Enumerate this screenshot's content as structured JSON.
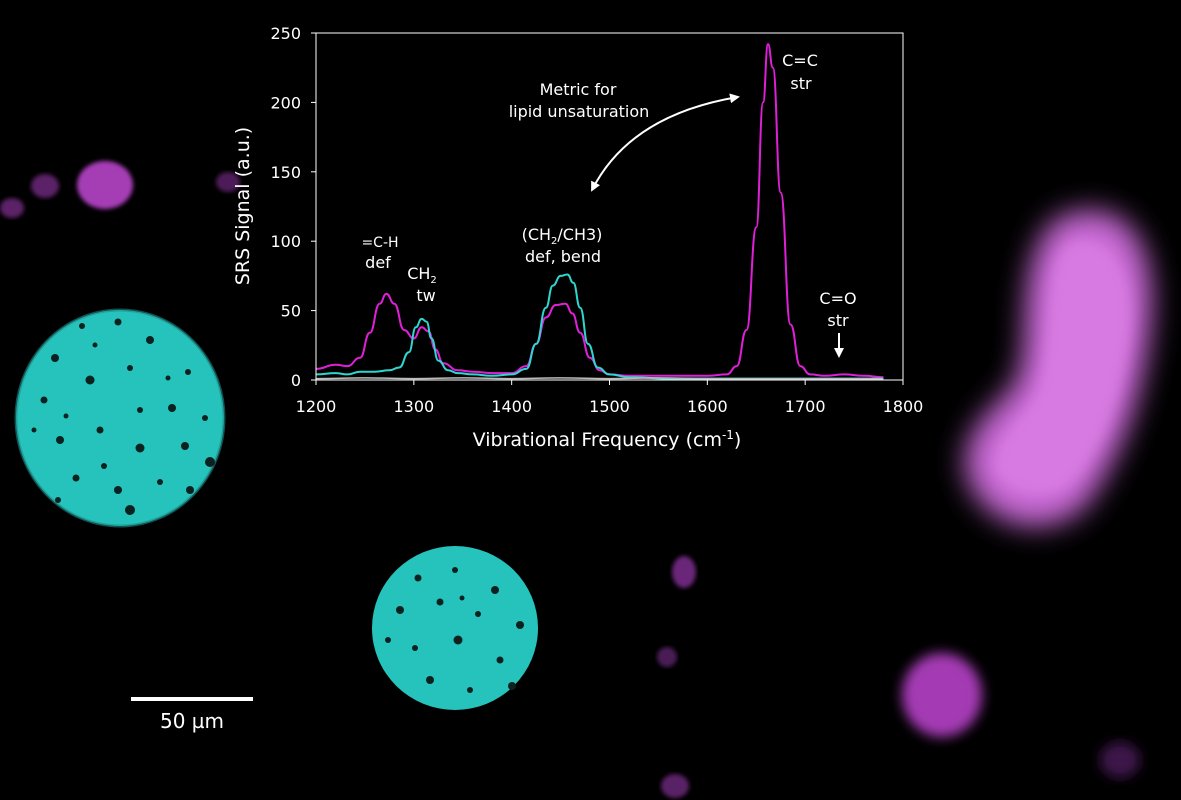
{
  "scale_bar": {
    "label": "50 µm"
  },
  "colors": {
    "background": "#000000",
    "cyan": "#2fd6cf",
    "magenta": "#d21fd0",
    "white": "#ffffff"
  },
  "chart_data": {
    "type": "line",
    "xlabel_main": "Vibrational Frequency (cm",
    "xlabel_sup": "-1",
    "xlabel_end": ")",
    "ylabel": "SRS Signal (a.u.)",
    "xlim": [
      1200,
      1800
    ],
    "ylim": [
      0,
      250
    ],
    "xticks": [
      "1200",
      "1300",
      "1400",
      "1500",
      "1600",
      "1700",
      "1800"
    ],
    "yticks": [
      "0",
      "50",
      "100",
      "150",
      "200",
      "250"
    ],
    "grid": false,
    "annotations": {
      "ch_def_line1": "=C-H",
      "ch_def_line2": "def",
      "ch2tw_main": "CH",
      "ch2tw_sub": "2",
      "ch2tw_line2": "tw",
      "bend_a": "(CH",
      "bend_sub": "2",
      "bend_b": "/CH3)",
      "bend_line2": "def, bend",
      "metric_line1": "Metric for",
      "metric_line2": "lipid unsaturation",
      "cc_line1": "C=C",
      "cc_line2": "str",
      "co_line1": "C=O",
      "co_line2": "str"
    },
    "series": [
      {
        "color": "#e020d8",
        "x": [
          1200,
          1220,
          1232,
          1245,
          1255,
          1265,
          1272,
          1280,
          1290,
          1300,
          1308,
          1315,
          1322,
          1330,
          1345,
          1360,
          1380,
          1400,
          1415,
          1425,
          1435,
          1445,
          1455,
          1462,
          1470,
          1480,
          1490,
          1500,
          1520,
          1550,
          1580,
          1600,
          1620,
          1630,
          1640,
          1650,
          1657,
          1662,
          1667,
          1675,
          1685,
          1695,
          1705,
          1720,
          1740,
          1760,
          1780
        ],
        "y": [
          8,
          11,
          10,
          16,
          34,
          55,
          62,
          55,
          36,
          30,
          38,
          35,
          22,
          12,
          7,
          6,
          5,
          5,
          10,
          26,
          45,
          54,
          55,
          48,
          34,
          16,
          7,
          4,
          3,
          3,
          3,
          3,
          4,
          10,
          36,
          110,
          200,
          242,
          225,
          135,
          40,
          10,
          4,
          3,
          4,
          3,
          2
        ]
      },
      {
        "color": "#2fd6cf",
        "x": [
          1200,
          1220,
          1232,
          1245,
          1260,
          1275,
          1285,
          1295,
          1302,
          1308,
          1313,
          1318,
          1325,
          1335,
          1345,
          1360,
          1380,
          1400,
          1415,
          1425,
          1435,
          1442,
          1450,
          1457,
          1463,
          1470,
          1478,
          1488,
          1500,
          1520,
          1560,
          1600,
          1640,
          1680,
          1720,
          1760,
          1780
        ],
        "y": [
          4,
          5,
          4,
          6,
          6,
          7,
          9,
          20,
          38,
          44,
          42,
          30,
          14,
          7,
          5,
          4,
          3,
          4,
          8,
          26,
          52,
          68,
          75,
          76,
          70,
          52,
          26,
          9,
          4,
          2,
          1,
          1,
          1,
          1,
          1,
          1,
          1
        ]
      },
      {
        "color": "#bbbbbb",
        "x": [
          1200,
          1250,
          1300,
          1350,
          1400,
          1450,
          1500,
          1550,
          1600,
          1650,
          1700,
          1750,
          1780
        ],
        "y": [
          1,
          1.5,
          1,
          1.5,
          1,
          1.5,
          1,
          1.5,
          1,
          1,
          1,
          1,
          1
        ]
      }
    ]
  }
}
